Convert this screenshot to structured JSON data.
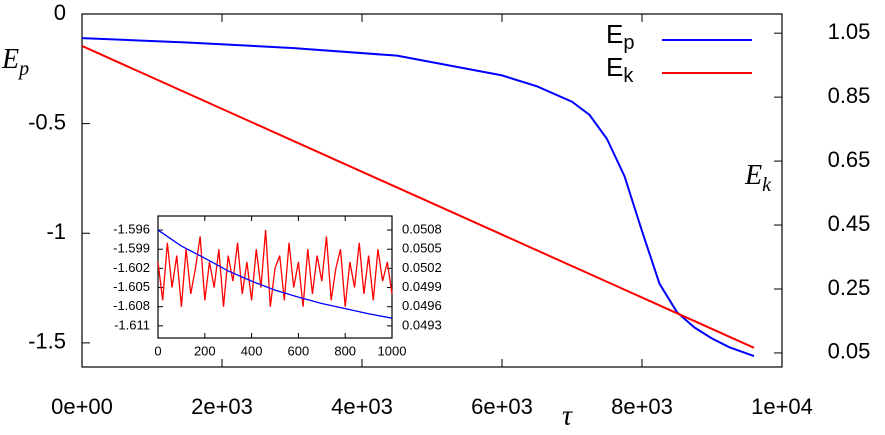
{
  "chart_data": [
    {
      "type": "line",
      "xlabel": "τ",
      "ylabel": "Ep",
      "y2label": "Ek",
      "xlim": [
        0,
        10000
      ],
      "xticks": [
        {
          "value": 0,
          "label": "0e+00"
        },
        {
          "value": 2000,
          "label": "2e+03"
        },
        {
          "value": 4000,
          "label": "4e+03"
        },
        {
          "value": 6000,
          "label": "6e+03"
        },
        {
          "value": 8000,
          "label": "8e+03"
        },
        {
          "value": 10000,
          "label": "1e+04"
        }
      ],
      "ylim": [
        -1.61,
        0
      ],
      "yticks": [
        0,
        -0.5,
        -1,
        -1.5
      ],
      "y2lim": [
        0.006,
        1.11
      ],
      "y2ticks": [
        1.05,
        0.85,
        0.65,
        0.45,
        0.25,
        0.05
      ],
      "legend": "top-right",
      "series": [
        {
          "name": "Ep",
          "color": "#0000ff",
          "x": [
            0,
            1500,
            3000,
            4500,
            6000,
            6500,
            7000,
            7250,
            7500,
            7750,
            8000,
            8250,
            8500,
            8750,
            9000,
            9250,
            9600
          ],
          "values": [
            -0.11,
            -0.13,
            -0.155,
            -0.19,
            -0.28,
            -0.33,
            -0.4,
            -0.46,
            -0.57,
            -0.74,
            -0.99,
            -1.23,
            -1.36,
            -1.43,
            -1.48,
            -1.52,
            -1.56
          ]
        },
        {
          "name": "Ek",
          "color": "#ff0000",
          "axis": "y2",
          "x": [
            0,
            9600
          ],
          "values": [
            1.01,
            0.066
          ]
        }
      ]
    },
    {
      "type": "line",
      "xlim": [
        0,
        1000
      ],
      "xticks": [
        0,
        200,
        400,
        600,
        800,
        1000
      ],
      "ylim": [
        -1.6129,
        -1.5938
      ],
      "yticks": [
        -1.596,
        -1.599,
        -1.602,
        -1.605,
        -1.608,
        -1.611
      ],
      "y2lim": [
        0.04911,
        0.05102
      ],
      "y2ticks": [
        0.0508,
        0.0505,
        0.0502,
        0.0499,
        0.0496,
        0.0493
      ],
      "series": [
        {
          "color": "#ff0000",
          "axis": "y2",
          "x": [
            0,
            20,
            40,
            60,
            80,
            100,
            120,
            140,
            160,
            180,
            200,
            220,
            240,
            260,
            280,
            300,
            320,
            340,
            360,
            380,
            400,
            420,
            440,
            460,
            480,
            500,
            520,
            540,
            560,
            580,
            600,
            620,
            640,
            660,
            680,
            700,
            720,
            740,
            760,
            780,
            800,
            820,
            840,
            860,
            880,
            900,
            920,
            940,
            960,
            980,
            1000
          ],
          "values": [
            0.0503,
            0.0497,
            0.0506,
            0.0499,
            0.0504,
            0.0496,
            0.0505,
            0.0498,
            0.0502,
            0.0507,
            0.0497,
            0.0503,
            0.0499,
            0.0505,
            0.0496,
            0.0504,
            0.05,
            0.0506,
            0.0498,
            0.0503,
            0.0497,
            0.0505,
            0.0499,
            0.0508,
            0.0496,
            0.0502,
            0.0504,
            0.0497,
            0.0506,
            0.0499,
            0.0503,
            0.0496,
            0.0505,
            0.0498,
            0.0504,
            0.05,
            0.0507,
            0.0497,
            0.0502,
            0.0505,
            0.0496,
            0.0503,
            0.0499,
            0.0506,
            0.0498,
            0.0504,
            0.0497,
            0.0505,
            0.05,
            0.0503,
            0.0498
          ]
        },
        {
          "color": "#0000ff",
          "x": [
            0,
            100,
            200,
            300,
            400,
            500,
            600,
            700,
            800,
            900,
            1000
          ],
          "values": [
            -1.596,
            -1.5985,
            -1.6004,
            -1.6024,
            -1.604,
            -1.6054,
            -1.6065,
            -1.6075,
            -1.6083,
            -1.6091,
            -1.6098
          ]
        }
      ]
    }
  ]
}
